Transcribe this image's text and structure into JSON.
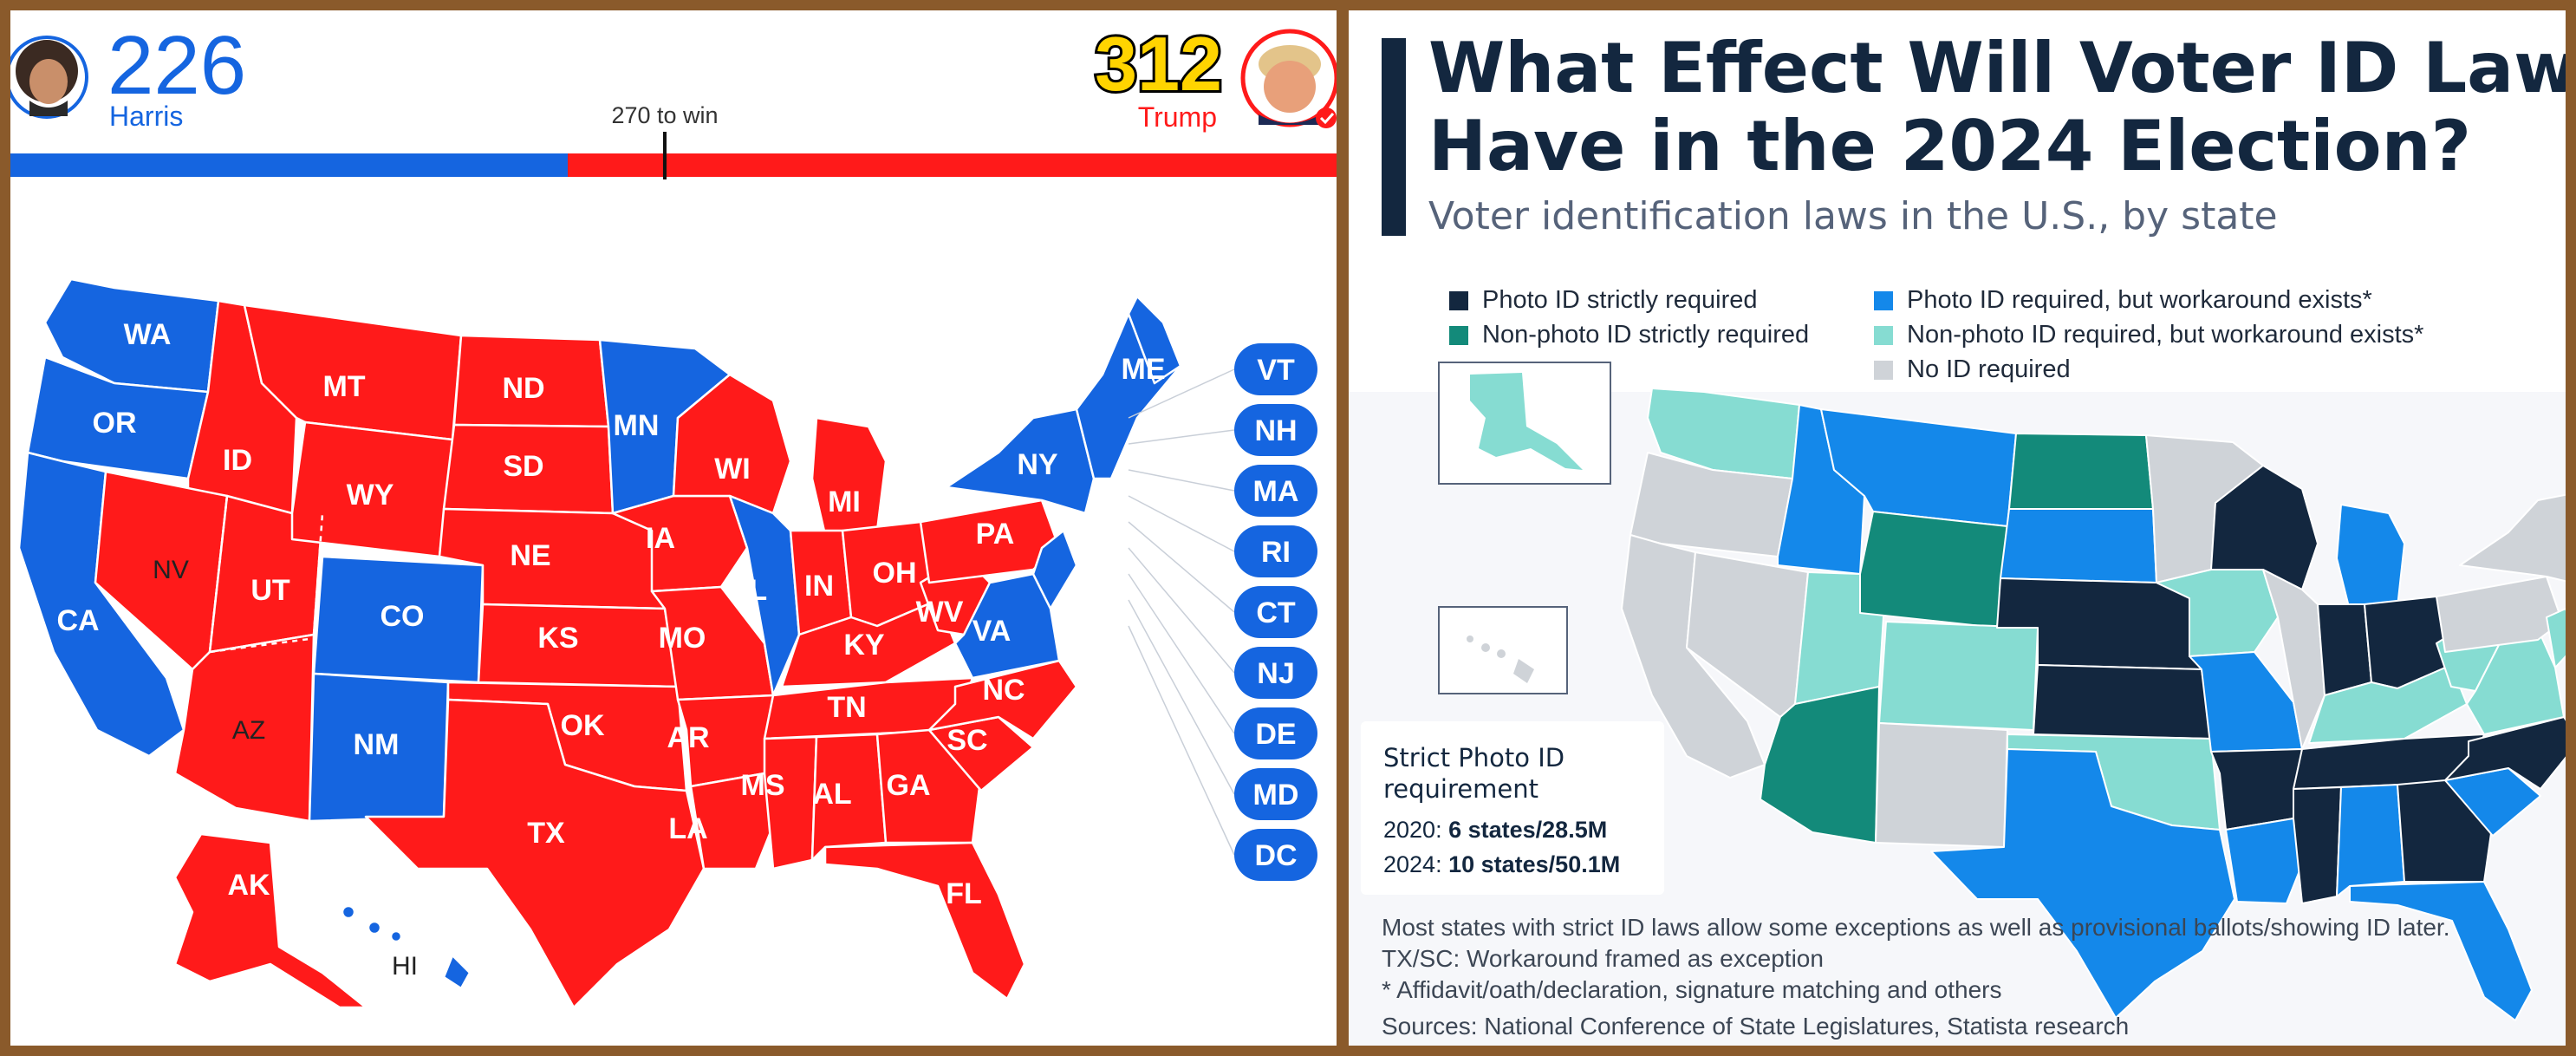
{
  "left": {
    "harris": {
      "votes": "226",
      "name": "Harris",
      "color": "#1565e0"
    },
    "trump": {
      "votes": "312",
      "name": "Trump",
      "color": "#ff1a1a"
    },
    "to_win_label": "270 to win",
    "harris_fraction": 0.42,
    "map_labels": [
      "WA",
      "OR",
      "CA",
      "ID",
      "NV",
      "UT",
      "AZ",
      "MT",
      "WY",
      "CO",
      "NM",
      "ND",
      "SD",
      "NE",
      "KS",
      "OK",
      "TX",
      "MN",
      "IA",
      "MO",
      "AR",
      "LA",
      "WI",
      "IL",
      "MI",
      "IN",
      "KY",
      "TN",
      "MS",
      "AL",
      "GA",
      "FL",
      "SC",
      "NC",
      "OH",
      "WV",
      "VA",
      "PA",
      "NY",
      "ME",
      "AK",
      "HI"
    ],
    "small_states": [
      "VT",
      "NH",
      "MA",
      "RI",
      "CT",
      "NJ",
      "DE",
      "MD",
      "DC"
    ]
  },
  "right": {
    "title_line1": "What Effect Will Voter ID Laws",
    "title_line2": "Have in the 2024 Election?",
    "subtitle": "Voter identification laws in the U.S., by state",
    "legend": [
      {
        "label": "Photo ID strictly required",
        "color": "#13273f"
      },
      {
        "label": "Non-photo ID strictly required",
        "color": "#138a7a"
      },
      {
        "label": "Photo ID required, but workaround exists*",
        "color": "#1488ea"
      },
      {
        "label": "Non-photo ID required, but workaround exists*",
        "color": "#86dcd2"
      },
      {
        "label": "No ID required",
        "color": "#cfd3d8"
      }
    ],
    "box": {
      "title_line1": "Strict Photo ID",
      "title_line2": "requirement",
      "row1_year": "2020:",
      "row1_value": "6 states/28.5M",
      "row2_year": "2024:",
      "row2_value": "10 states/50.1M"
    },
    "notes": [
      "Most states with strict ID laws allow some exceptions as well as provisional ballots/showing ID later.",
      "TX/SC: Workaround framed as exception",
      "* Affidavit/oath/declaration, signature matching and others",
      "Sources: National Conference of State Legislatures, Statista research"
    ]
  }
}
